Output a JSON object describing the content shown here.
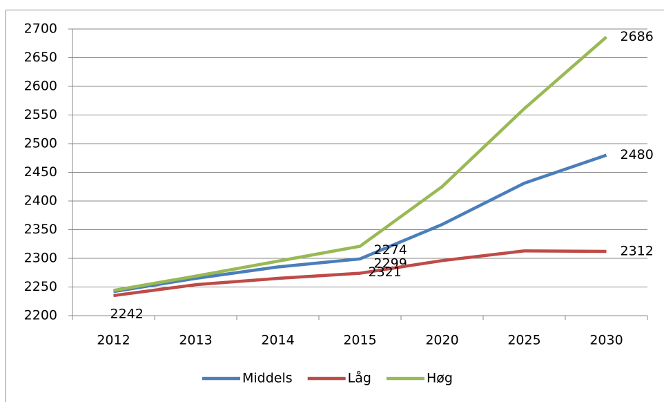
{
  "chart_data": {
    "type": "line",
    "categories": [
      "2012",
      "2013",
      "2014",
      "2015",
      "2020",
      "2025",
      "2030"
    ],
    "series": [
      {
        "name": "Middels",
        "color": "#4a7ebb",
        "values": [
          2242,
          2265,
          2285,
          2299,
          2359,
          2431,
          2480
        ],
        "value_labels": [
          2242,
          null,
          null,
          2299,
          null,
          null,
          2480
        ]
      },
      {
        "name": "Låg",
        "color": "#be4b48",
        "values": [
          2235,
          2254,
          2265,
          2274,
          2296,
          2313,
          2312
        ],
        "value_labels": [
          null,
          null,
          null,
          2274,
          null,
          null,
          2312
        ]
      },
      {
        "name": "Høg",
        "color": "#98b954",
        "values": [
          2244,
          2269,
          2295,
          2321,
          2425,
          2561,
          2686
        ],
        "value_labels": [
          null,
          null,
          null,
          2321,
          null,
          null,
          2686
        ]
      }
    ],
    "ylim": [
      2200,
      2700
    ],
    "yticks": [
      2200,
      2250,
      2300,
      2350,
      2400,
      2450,
      2500,
      2550,
      2600,
      2650,
      2700
    ],
    "grid": true,
    "legend": "bottom"
  }
}
